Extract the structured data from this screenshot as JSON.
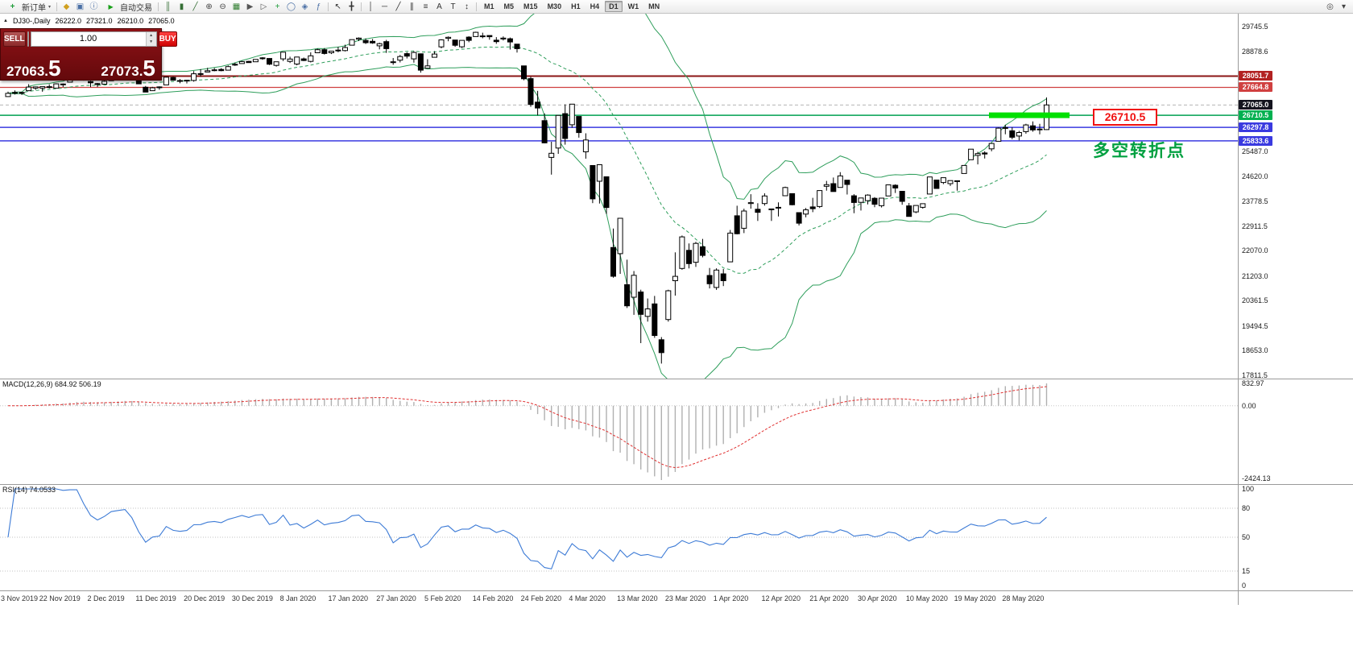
{
  "glyphs": {
    "triangle_up": "▲",
    "triangle_down": "▼",
    "chevron_down": "▾"
  },
  "toolbar": {
    "new_order": {
      "label": "新订单",
      "glyph": "+"
    },
    "system_icons": [
      {
        "name": "templates-icon",
        "glyph": "◆",
        "color": "#d0a020"
      },
      {
        "name": "profiles-icon",
        "glyph": "▣",
        "color": "#4a6fa5"
      },
      {
        "name": "data-window-icon",
        "glyph": "ⓘ",
        "color": "#4a6fa5"
      }
    ],
    "autotrade": {
      "label": "自动交易",
      "glyph": "▶"
    },
    "chart_icons": [
      {
        "name": "bar-chart-icon",
        "glyph": "║",
        "color": "#356f35"
      },
      {
        "name": "candlestick-chart-icon",
        "glyph": "▮",
        "color": "#356f35"
      },
      {
        "name": "line-chart-icon",
        "glyph": "╱",
        "color": "#356f35"
      },
      {
        "name": "zoom-in-icon",
        "glyph": "⊕",
        "color": "#444444"
      },
      {
        "name": "zoom-out-icon",
        "glyph": "⊖",
        "color": "#444444"
      },
      {
        "name": "tile-windows-icon",
        "glyph": "▦",
        "color": "#2f7d2f"
      },
      {
        "name": "auto-scroll-icon",
        "glyph": "▶",
        "color": "#555555"
      },
      {
        "name": "chart-shift-icon",
        "glyph": "▷",
        "color": "#555555"
      },
      {
        "name": "new-chart-icon",
        "glyph": "+",
        "color": "#1f9d3a"
      },
      {
        "name": "cycle-lines-icon",
        "glyph": "◯",
        "color": "#4a6fa5"
      },
      {
        "name": "objects-icon",
        "glyph": "◈",
        "color": "#4a6fa5"
      },
      {
        "name": "indicators-icon",
        "glyph": "ƒ",
        "color": "#4a6fa5"
      }
    ],
    "pointer_icons": [
      {
        "name": "cursor-icon",
        "glyph": "↖",
        "color": "#333333"
      },
      {
        "name": "crosshair-icon",
        "glyph": "╋",
        "color": "#333333"
      }
    ],
    "draw_icons": [
      {
        "name": "vertical-line-icon",
        "glyph": "│",
        "color": "#333333"
      },
      {
        "name": "horizontal-line-icon",
        "glyph": "─",
        "color": "#333333"
      },
      {
        "name": "trendline-icon",
        "glyph": "╱",
        "color": "#333333"
      },
      {
        "name": "equidistant-channel-icon",
        "glyph": "∥",
        "color": "#333333"
      },
      {
        "name": "fibonacci-icon",
        "glyph": "≡",
        "color": "#333333"
      },
      {
        "name": "text-icon",
        "glyph": "A",
        "color": "#333333"
      },
      {
        "name": "text-label-icon",
        "glyph": "T",
        "color": "#333333"
      },
      {
        "name": "arrows-icon",
        "glyph": "↕",
        "color": "#333333"
      }
    ],
    "timeframes": [
      "M1",
      "M5",
      "M15",
      "M30",
      "H1",
      "H4",
      "D1",
      "W1",
      "MN"
    ],
    "active_timeframe": "D1",
    "right_icons": [
      {
        "name": "search-icon",
        "glyph": "◎",
        "color": "#444444"
      },
      {
        "name": "toolbar-options-icon",
        "glyph": "▾",
        "color": "#444444"
      }
    ]
  },
  "chart_info": {
    "symbol_period": "DJ30-,Daily",
    "open": "26222.0",
    "high": "27321.0",
    "low": "26210.0",
    "close": "27065.0"
  },
  "trade_panel": {
    "sell_label": "SELL",
    "buy_label": "BUY",
    "volume": "1.00",
    "sell_price_main": "27063.",
    "sell_price_big": "5",
    "buy_price_main": "27073.",
    "buy_price_big": "5"
  },
  "chart_data": [
    {
      "type": "candlestick",
      "title": "DJ30-,Daily",
      "ylim": [
        17811.5,
        29745.5
      ],
      "y_ticks": [
        "29745.5",
        "28878.6",
        "25487.0",
        "24620.0",
        "23778.5",
        "22911.5",
        "22070.0",
        "21203.0",
        "20361.5",
        "19494.5",
        "18653.0",
        "17811.5"
      ],
      "x_ticks": [
        "3 Nov 2019",
        "22 Nov 2019",
        "2 Dec 2019",
        "11 Dec 2019",
        "20 Dec 2019",
        "30 Dec 2019",
        "8 Jan 2020",
        "17 Jan 2020",
        "27 Jan 2020",
        "5 Feb 2020",
        "14 Feb 2020",
        "24 Feb 2020",
        "4 Mar 2020",
        "13 Mar 2020",
        "23 Mar 2020",
        "1 Apr 2020",
        "12 Apr 2020",
        "21 Apr 2020",
        "30 Apr 2020",
        "10 May 2020",
        "19 May 2020",
        "28 May 2020"
      ],
      "x_tick_every": 7,
      "bollinger": {
        "period": 20,
        "deviation": 2,
        "color": "#2e9e5b"
      },
      "hlines": [
        {
          "value": 28051.7,
          "color": "#8b1515",
          "width": 2,
          "label_bg": "#b22222"
        },
        {
          "value": 27664.8,
          "color": "#d04040",
          "width": 1.2,
          "label_bg": "#d04040"
        },
        {
          "value": 26710.5,
          "color": "#00a050",
          "width": 1.5,
          "label_bg": "#00b050"
        },
        {
          "value": 26297.8,
          "color": "#3a3ae0",
          "width": 1.5,
          "label_bg": "#3a3ae0"
        },
        {
          "value": 25833.6,
          "color": "#3a3ae0",
          "width": 1.5,
          "label_bg": "#3a3ae0"
        }
      ],
      "current_price": {
        "value": 27065.0,
        "label": "27065.0",
        "label_bg": "#14141e"
      },
      "highlight": {
        "value": 26710.5,
        "color": "#00e000"
      },
      "annotations": [
        {
          "text": "26710.5",
          "color": "#f01010"
        },
        {
          "text": "多空转折点",
          "color": "#00a040"
        }
      ],
      "ohlc": [
        [
          27350,
          27520,
          27340,
          27460
        ],
        [
          27470,
          27560,
          27420,
          27490
        ],
        [
          27470,
          27515,
          27405,
          27490
        ],
        [
          27550,
          27775,
          27550,
          27675
        ],
        [
          27640,
          27695,
          27580,
          27680
        ],
        [
          27640,
          27695,
          27515,
          27690
        ],
        [
          27680,
          27770,
          27625,
          27690
        ],
        [
          27640,
          27805,
          27635,
          27785
        ],
        [
          27760,
          27800,
          27675,
          27780
        ],
        [
          27845,
          28005,
          27845,
          28005
        ],
        [
          28000,
          28040,
          27900,
          28035
        ],
        [
          28075,
          28090,
          27895,
          27935
        ],
        [
          27865,
          27890,
          27675,
          27820
        ],
        [
          27795,
          27815,
          27675,
          27765
        ],
        [
          27775,
          27900,
          27775,
          27875
        ],
        [
          27895,
          28070,
          27895,
          28065
        ],
        [
          28070,
          28145,
          28020,
          28120
        ],
        [
          28130,
          28175,
          28080,
          28165
        ],
        [
          28130,
          28165,
          28040,
          28050
        ],
        [
          28110,
          28110,
          27780,
          27785
        ],
        [
          27670,
          27715,
          27525,
          27505
        ],
        [
          27550,
          27685,
          27550,
          27650
        ],
        [
          27660,
          27700,
          27585,
          27680
        ],
        [
          27750,
          28035,
          27750,
          28015
        ],
        [
          28005,
          28030,
          27905,
          27910
        ],
        [
          27900,
          27950,
          27805,
          27880
        ],
        [
          27885,
          27925,
          27800,
          27910
        ],
        [
          27900,
          28225,
          27860,
          28130
        ],
        [
          28125,
          28290,
          28030,
          28135
        ],
        [
          28190,
          28335,
          28190,
          28235
        ],
        [
          28250,
          28330,
          28215,
          28265
        ],
        [
          28280,
          28325,
          28215,
          28240
        ],
        [
          28255,
          28415,
          28255,
          28375
        ],
        [
          28445,
          28510,
          28400,
          28455
        ],
        [
          28480,
          28575,
          28480,
          28550
        ],
        [
          28555,
          28575,
          28505,
          28515
        ],
        [
          28540,
          28625,
          28535,
          28620
        ],
        [
          28675,
          28700,
          28610,
          28645
        ],
        [
          28655,
          28665,
          28430,
          28460
        ],
        [
          28415,
          28545,
          28375,
          28540
        ],
        [
          28640,
          28870,
          28565,
          28870
        ],
        [
          28555,
          28715,
          28500,
          28635
        ],
        [
          28465,
          28710,
          28420,
          28705
        ],
        [
          28640,
          28685,
          28565,
          28585
        ],
        [
          28555,
          28865,
          28520,
          28745
        ],
        [
          28850,
          28990,
          28845,
          28955
        ],
        [
          28955,
          29010,
          28790,
          28825
        ],
        [
          28850,
          28910,
          28805,
          28905
        ],
        [
          28935,
          29055,
          28865,
          28940
        ],
        [
          28925,
          29125,
          28895,
          29030
        ],
        [
          29110,
          29300,
          29110,
          29300
        ],
        [
          29315,
          29375,
          29250,
          29350
        ],
        [
          29270,
          29340,
          29150,
          29195
        ],
        [
          29240,
          29320,
          29155,
          29185
        ],
        [
          29085,
          29195,
          28965,
          29160
        ],
        [
          29230,
          29290,
          28845,
          28990
        ],
        [
          28540,
          28670,
          28440,
          28535
        ],
        [
          28595,
          28775,
          28520,
          28720
        ],
        [
          28820,
          28865,
          28655,
          28735
        ],
        [
          28640,
          28900,
          28510,
          28860
        ],
        [
          28815,
          28815,
          28170,
          28255
        ],
        [
          28320,
          28630,
          28320,
          28400
        ],
        [
          28695,
          28905,
          28695,
          28805
        ],
        [
          29050,
          29310,
          29000,
          29290
        ],
        [
          29345,
          29410,
          29245,
          29380
        ],
        [
          29285,
          29285,
          29055,
          29105
        ],
        [
          29055,
          29275,
          29010,
          29275
        ],
        [
          29385,
          29415,
          29210,
          29275
        ],
        [
          29405,
          29570,
          29405,
          29550
        ],
        [
          29405,
          29535,
          29345,
          29425
        ],
        [
          29440,
          29440,
          29295,
          29400
        ],
        [
          29280,
          29385,
          29155,
          29230
        ],
        [
          29320,
          29410,
          29270,
          29350
        ],
        [
          29330,
          29370,
          28960,
          29220
        ],
        [
          29145,
          29145,
          28855,
          28990
        ],
        [
          28400,
          28400,
          27910,
          27960
        ],
        [
          27965,
          28030,
          27000,
          27080
        ],
        [
          27160,
          27545,
          26705,
          26960
        ],
        [
          26525,
          26775,
          25750,
          25765
        ],
        [
          25270,
          25805,
          24680,
          25410
        ],
        [
          25590,
          26705,
          25390,
          26705
        ],
        [
          26765,
          27085,
          25705,
          25915
        ],
        [
          26385,
          27100,
          26285,
          27090
        ],
        [
          26670,
          26670,
          25945,
          26120
        ],
        [
          25460,
          26095,
          25225,
          25865
        ],
        [
          24990,
          24990,
          23705,
          23850
        ],
        [
          24455,
          25020,
          23690,
          25020
        ],
        [
          24605,
          24605,
          23330,
          23555
        ],
        [
          22185,
          22835,
          21155,
          21200
        ],
        [
          21975,
          23190,
          21285,
          23185
        ],
        [
          20915,
          21770,
          20115,
          20190
        ],
        [
          20485,
          21380,
          19880,
          21235
        ],
        [
          20665,
          20740,
          18915,
          19900
        ],
        [
          19830,
          20440,
          19650,
          20085
        ],
        [
          20255,
          20530,
          19095,
          19175
        ],
        [
          19030,
          19120,
          18215,
          18590
        ],
        [
          19720,
          20740,
          19650,
          20705
        ],
        [
          21050,
          22020,
          20540,
          21200
        ],
        [
          21470,
          22595,
          21425,
          22550
        ],
        [
          22090,
          22325,
          21470,
          21635
        ],
        [
          21680,
          22380,
          21520,
          22325
        ],
        [
          22210,
          22480,
          21850,
          21915
        ],
        [
          21230,
          21485,
          20785,
          20945
        ],
        [
          20820,
          21475,
          20735,
          21415
        ],
        [
          21285,
          21450,
          20865,
          21050
        ],
        [
          21695,
          22785,
          21695,
          22680
        ],
        [
          23270,
          23615,
          22635,
          22655
        ],
        [
          22845,
          23515,
          22680,
          23435
        ],
        [
          23690,
          24010,
          23515,
          23720
        ],
        [
          23495,
          23700,
          23095,
          23390
        ],
        [
          23690,
          24040,
          23620,
          23950
        ],
        [
          23505,
          23515,
          23095,
          23505
        ],
        [
          23560,
          23730,
          23250,
          23540
        ],
        [
          23960,
          24265,
          23960,
          24240
        ],
        [
          24030,
          24030,
          23630,
          23650
        ],
        [
          23380,
          23380,
          22940,
          23020
        ],
        [
          23330,
          23540,
          23220,
          23475
        ],
        [
          23575,
          23885,
          23395,
          23515
        ],
        [
          23590,
          24140,
          23540,
          24135
        ],
        [
          24280,
          24465,
          24130,
          24335
        ],
        [
          24370,
          24580,
          24095,
          24100
        ],
        [
          24240,
          24765,
          24240,
          24635
        ],
        [
          24490,
          24490,
          24000,
          24345
        ],
        [
          23955,
          24010,
          23360,
          23725
        ],
        [
          23730,
          23885,
          23450,
          23880
        ],
        [
          23790,
          24005,
          23660,
          23980
        ],
        [
          23870,
          23910,
          23565,
          23665
        ],
        [
          23615,
          23890,
          23555,
          23875
        ],
        [
          23950,
          24340,
          23950,
          24330
        ],
        [
          24315,
          24350,
          24050,
          24220
        ],
        [
          24110,
          24110,
          23650,
          23765
        ],
        [
          23610,
          23710,
          23245,
          23250
        ],
        [
          23405,
          23630,
          23360,
          23625
        ],
        [
          23560,
          23690,
          23515,
          23685
        ],
        [
          24015,
          24600,
          24015,
          24600
        ],
        [
          24495,
          24495,
          24200,
          24205
        ],
        [
          24410,
          24580,
          24355,
          24575
        ],
        [
          24370,
          24480,
          24290,
          24475
        ],
        [
          24470,
          24470,
          24130,
          24465
        ],
        [
          24720,
          25000,
          24720,
          24995
        ],
        [
          25190,
          25550,
          25190,
          25550
        ],
        [
          25340,
          25460,
          25030,
          25400
        ],
        [
          25420,
          25480,
          25230,
          25385
        ],
        [
          25560,
          25760,
          25480,
          25745
        ],
        [
          25820,
          26295,
          25820,
          26270
        ],
        [
          26290,
          26385,
          26060,
          26285
        ],
        [
          26180,
          26300,
          25890,
          25960
        ],
        [
          26000,
          26180,
          25850,
          26120
        ],
        [
          26150,
          26420,
          26080,
          26380
        ],
        [
          26350,
          26500,
          26150,
          26210
        ],
        [
          26230,
          26420,
          26060,
          26240
        ],
        [
          26222,
          27321,
          26210,
          27065
        ]
      ]
    },
    {
      "type": "macd-histogram",
      "title": "MACD(12,26,9) 684.92 506.19",
      "params": [
        12,
        26,
        9
      ],
      "values": [
        "684.92",
        "506.19"
      ],
      "y_ticks": [
        "832.97",
        "0.00",
        "-2424.13"
      ],
      "histogram_color": "#b0b0b0",
      "signal_color": "#e03030"
    },
    {
      "type": "rsi-line",
      "title": "RSI(14) 74.0533",
      "period": 14,
      "last_value": "74.0533",
      "y_ticks": [
        "100",
        "80",
        "50",
        "15",
        "0"
      ],
      "levels": [
        80,
        50,
        15
      ],
      "line_color": "#3d7bd6"
    }
  ]
}
